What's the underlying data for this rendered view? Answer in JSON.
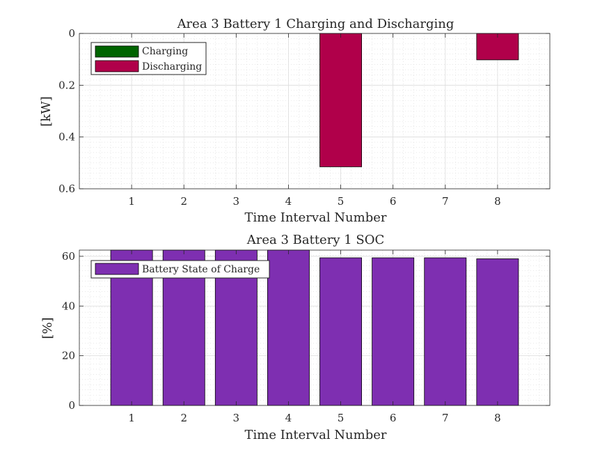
{
  "chart_data": [
    {
      "type": "bar",
      "title": "Area 3 Battery 1 Charging and Discharging",
      "xlabel": "Time Interval Number",
      "ylabel": "[kW]",
      "y_direction": "reversed",
      "ylim": [
        0,
        0.6
      ],
      "yticks": [
        "0",
        "0.2",
        "0.4",
        "0.6"
      ],
      "xlim": [
        0,
        9
      ],
      "categories": [
        "1",
        "2",
        "3",
        "4",
        "5",
        "6",
        "7",
        "8"
      ],
      "grid": true,
      "minor_grid": true,
      "legend_position": "top-left",
      "series": [
        {
          "name": "Charging",
          "color": "#006400",
          "values": [
            0,
            0,
            0,
            0,
            0,
            0,
            0,
            0
          ]
        },
        {
          "name": "Discharging",
          "color": "#B0004A",
          "values": [
            0,
            0,
            0,
            0,
            0.515,
            0,
            0,
            0.102
          ]
        }
      ]
    },
    {
      "type": "bar",
      "title": "Area 3 Battery 1 SOC",
      "xlabel": "Time Interval Number",
      "ylabel": "[%]",
      "ylim": [
        0,
        62.5
      ],
      "yticks": [
        "0",
        "20",
        "40",
        "60"
      ],
      "xlim": [
        0,
        9
      ],
      "categories": [
        "1",
        "2",
        "3",
        "4",
        "5",
        "6",
        "7",
        "8"
      ],
      "grid": true,
      "minor_grid": true,
      "legend_position": "top-left",
      "series": [
        {
          "name": "Battery State of Charge",
          "color": "#7E2FB1",
          "values": [
            63,
            63,
            63,
            63,
            59.4,
            59.4,
            59.4,
            59
          ]
        }
      ]
    }
  ]
}
